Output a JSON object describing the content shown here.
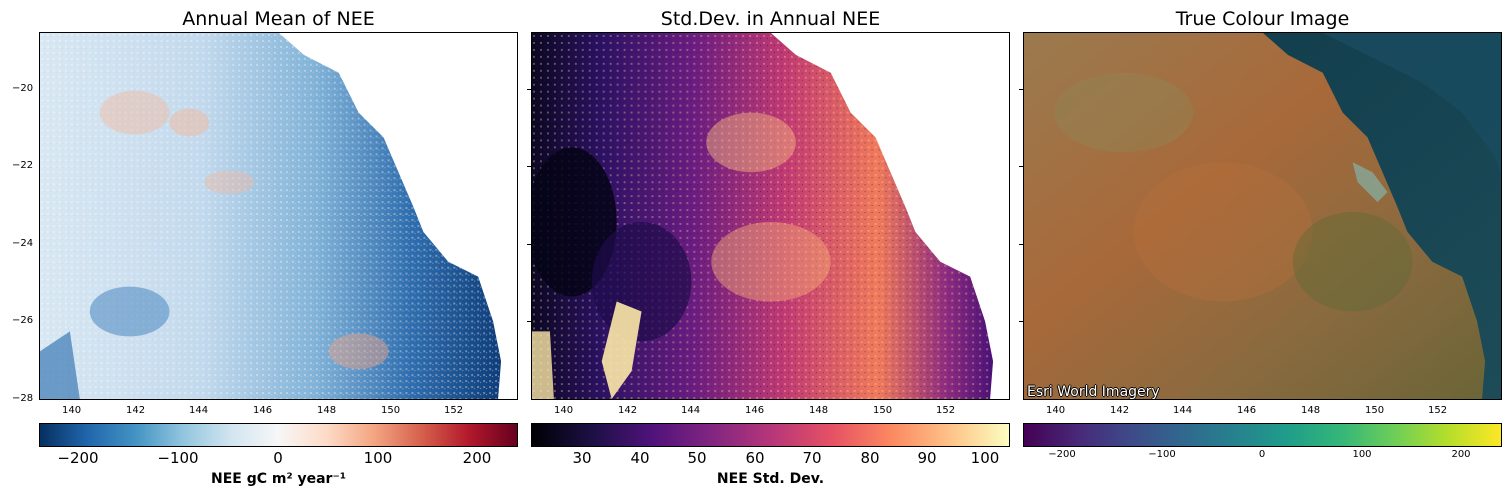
{
  "panels": [
    {
      "title": "Annual Mean of NEE",
      "colorbar": {
        "label": "NEE gC m² year⁻¹",
        "colormap": "RdBu_r",
        "ticks": [
          "−200",
          "−100",
          "0",
          "100",
          "200"
        ],
        "range": [
          -240,
          240
        ]
      }
    },
    {
      "title": "Std.Dev. in Annual NEE",
      "colorbar": {
        "label": "NEE Std. Dev.",
        "colormap": "magma",
        "ticks": [
          "30",
          "40",
          "50",
          "60",
          "70",
          "80",
          "90",
          "100"
        ],
        "range": [
          22,
          104
        ]
      }
    },
    {
      "title": "True Colour Image",
      "attribution": "Esri World Imagery",
      "colorbar": {
        "label": "",
        "colormap": "viridis",
        "ticks": [
          "−200",
          "−100",
          "0",
          "100",
          "200"
        ],
        "range": [
          -240,
          240
        ]
      }
    }
  ],
  "axes": {
    "x_ticks": [
      "140",
      "142",
      "144",
      "146",
      "148",
      "150",
      "152"
    ],
    "y_ticks": [
      "−20",
      "−22",
      "−24",
      "−26",
      "−28"
    ],
    "x_values": [
      140,
      142,
      144,
      146,
      148,
      150,
      152
    ],
    "y_values": [
      -20,
      -22,
      -24,
      -26,
      -28
    ],
    "xlim": [
      139,
      154
    ],
    "ylim": [
      -28,
      -18.6
    ]
  },
  "colors": {
    "blue_dark": "#08306b",
    "blue_mid": "#4a90c4",
    "blue_light": "#d6e6f4",
    "red_light": "#f4a582",
    "magma_dark": "#180f3e",
    "magma_mid": "#b73779",
    "magma_light": "#fcfdbf",
    "land": "#a86d3c",
    "ocean": "#1f4f5a"
  }
}
